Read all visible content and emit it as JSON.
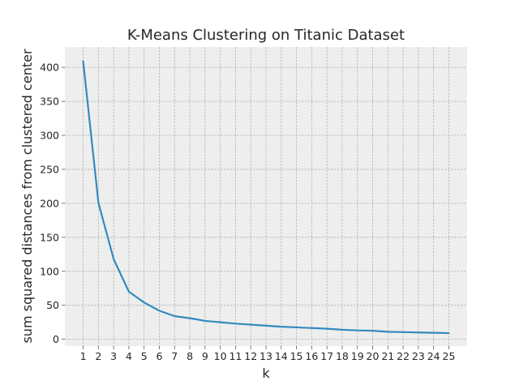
{
  "chart_data": {
    "type": "line",
    "title": "K-Means Clustering on Titanic Dataset",
    "xlabel": "k",
    "ylabel": "sum squared distances from clustered center",
    "x": [
      1,
      2,
      3,
      4,
      5,
      6,
      7,
      8,
      9,
      10,
      11,
      12,
      13,
      14,
      15,
      16,
      17,
      18,
      19,
      20,
      21,
      22,
      23,
      24,
      25
    ],
    "series": [
      {
        "name": "",
        "color": "#348ABD",
        "values": [
          409,
          201,
          118,
          70,
          54,
          42,
          34,
          31,
          27,
          25,
          23,
          21.5,
          20,
          18.5,
          17.5,
          16.5,
          15.5,
          14,
          13,
          12.5,
          11,
          10.5,
          10,
          9.5,
          9
        ]
      }
    ],
    "xticks": [
      1,
      2,
      3,
      4,
      5,
      6,
      7,
      8,
      9,
      10,
      11,
      12,
      13,
      14,
      15,
      16,
      17,
      18,
      19,
      20,
      21,
      22,
      23,
      24,
      25
    ],
    "yticks": [
      0,
      50,
      100,
      150,
      200,
      250,
      300,
      350,
      400
    ],
    "xlim": [
      -0.2,
      26.2
    ],
    "ylim": [
      -10,
      430
    ],
    "grid": true,
    "grid_style": "dashed",
    "legend": "none",
    "background_color": "#EEEEEE",
    "grid_color": "#B2B2B2"
  }
}
